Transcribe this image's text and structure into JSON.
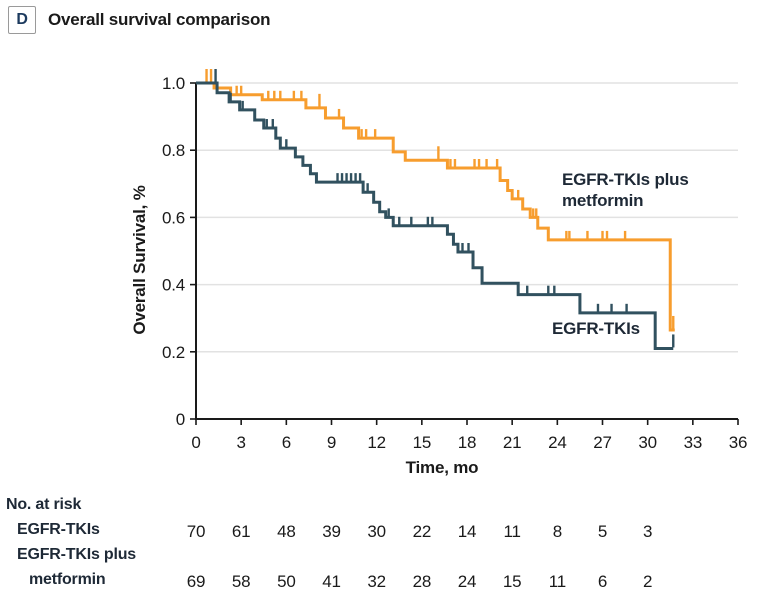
{
  "panel": {
    "letter": "D",
    "title": "Overall survival comparison"
  },
  "chart_data": {
    "type": "line",
    "subtype": "kaplan-meier-step",
    "title": "Overall survival comparison",
    "xlabel": "Time, mo",
    "ylabel": "Overall Survival, %",
    "xlim": [
      0,
      36
    ],
    "ylim": [
      0,
      1.0
    ],
    "grid": "horizontal",
    "x_ticks": [
      0,
      3,
      6,
      9,
      12,
      15,
      18,
      21,
      24,
      27,
      30,
      33,
      36
    ],
    "y_ticks": [
      {
        "v": 1.0,
        "label": "1.0"
      },
      {
        "v": 0.8,
        "label": "0.8"
      },
      {
        "v": 0.6,
        "label": "0.6"
      },
      {
        "v": 0.4,
        "label": "0.4"
      },
      {
        "v": 0.2,
        "label": "0.2"
      },
      {
        "v": 0.0,
        "label": "0"
      }
    ],
    "series": [
      {
        "name": "EGFR-TKIs plus metformin",
        "label_lines": [
          "EGFR-TKIs plus",
          "metformin"
        ],
        "color": "#F79D2E",
        "start": [
          0,
          1.0
        ],
        "end_month": 31.8,
        "steps": [
          [
            1.2,
            0.985
          ],
          [
            2.3,
            0.965
          ],
          [
            4.4,
            0.95
          ],
          [
            7.3,
            0.926
          ],
          [
            8.6,
            0.896
          ],
          [
            9.8,
            0.866
          ],
          [
            10.8,
            0.836
          ],
          [
            13.1,
            0.795
          ],
          [
            13.9,
            0.77
          ],
          [
            16.7,
            0.747
          ],
          [
            20.2,
            0.71
          ],
          [
            20.7,
            0.68
          ],
          [
            21.0,
            0.655
          ],
          [
            21.7,
            0.625
          ],
          [
            22.2,
            0.6
          ],
          [
            22.7,
            0.568
          ],
          [
            23.4,
            0.533
          ],
          [
            31.5,
            0.265
          ]
        ],
        "censors": [
          [
            0.7,
            1.0,
            1
          ],
          [
            1.0,
            1.0,
            1
          ],
          [
            2.7,
            0.965
          ],
          [
            3.0,
            0.965
          ],
          [
            4.8,
            0.95
          ],
          [
            5.2,
            0.95
          ],
          [
            5.6,
            0.95
          ],
          [
            6.5,
            0.95
          ],
          [
            7.0,
            0.95
          ],
          [
            8.2,
            0.926,
            1
          ],
          [
            9.5,
            0.896
          ],
          [
            11.0,
            0.836
          ],
          [
            11.3,
            0.836
          ],
          [
            11.9,
            0.836
          ],
          [
            16.1,
            0.77,
            1
          ],
          [
            16.9,
            0.747
          ],
          [
            17.2,
            0.747
          ],
          [
            18.5,
            0.747
          ],
          [
            18.8,
            0.747
          ],
          [
            19.3,
            0.747
          ],
          [
            20.0,
            0.747
          ],
          [
            21.4,
            0.655
          ],
          [
            22.4,
            0.6
          ],
          [
            22.6,
            0.6
          ],
          [
            24.6,
            0.533
          ],
          [
            24.8,
            0.533
          ],
          [
            26.0,
            0.533
          ],
          [
            27.0,
            0.533
          ],
          [
            27.3,
            0.533
          ],
          [
            28.5,
            0.533
          ],
          [
            31.7,
            0.265,
            1
          ]
        ]
      },
      {
        "name": "EGFR-TKIs",
        "label_lines": [
          "EGFR-TKIs"
        ],
        "color": "#31515F",
        "start": [
          0,
          1.0
        ],
        "end_month": 31.7,
        "steps": [
          [
            1.4,
            0.971
          ],
          [
            2.2,
            0.944
          ],
          [
            2.9,
            0.92
          ],
          [
            3.9,
            0.89
          ],
          [
            4.5,
            0.866
          ],
          [
            5.3,
            0.836
          ],
          [
            5.6,
            0.806
          ],
          [
            6.6,
            0.78
          ],
          [
            7.1,
            0.755
          ],
          [
            7.6,
            0.73
          ],
          [
            8.0,
            0.705
          ],
          [
            11.1,
            0.675
          ],
          [
            11.8,
            0.645
          ],
          [
            12.2,
            0.617
          ],
          [
            12.6,
            0.6
          ],
          [
            13.1,
            0.575
          ],
          [
            16.7,
            0.55
          ],
          [
            17.1,
            0.52
          ],
          [
            17.4,
            0.497
          ],
          [
            18.4,
            0.45
          ],
          [
            19.0,
            0.404
          ],
          [
            21.4,
            0.37
          ],
          [
            25.5,
            0.316
          ],
          [
            30.5,
            0.21
          ]
        ],
        "censors": [
          [
            1.3,
            1.0,
            1
          ],
          [
            2.3,
            0.944
          ],
          [
            3.1,
            0.92
          ],
          [
            4.7,
            0.866
          ],
          [
            5.1,
            0.866
          ],
          [
            6.0,
            0.806
          ],
          [
            9.4,
            0.705
          ],
          [
            9.7,
            0.705
          ],
          [
            10.0,
            0.705
          ],
          [
            10.3,
            0.705
          ],
          [
            10.6,
            0.705
          ],
          [
            10.9,
            0.705
          ],
          [
            11.4,
            0.675
          ],
          [
            12.8,
            0.6
          ],
          [
            13.5,
            0.575
          ],
          [
            14.3,
            0.575
          ],
          [
            15.4,
            0.575
          ],
          [
            15.7,
            0.575
          ],
          [
            17.7,
            0.497
          ],
          [
            18.1,
            0.497
          ],
          [
            22.0,
            0.37
          ],
          [
            23.4,
            0.37
          ],
          [
            23.8,
            0.37
          ],
          [
            26.7,
            0.316
          ],
          [
            27.6,
            0.316
          ],
          [
            28.6,
            0.316
          ],
          [
            31.7,
            0.21,
            1
          ]
        ]
      }
    ]
  },
  "risk_table": {
    "heading": "No. at risk",
    "months": [
      0,
      3,
      6,
      9,
      12,
      15,
      18,
      21,
      24,
      27,
      30
    ],
    "rows": [
      {
        "label_lines": [
          "EGFR-TKIs"
        ],
        "values": [
          70,
          61,
          48,
          39,
          30,
          22,
          14,
          11,
          8,
          5,
          3
        ]
      },
      {
        "label_lines": [
          "EGFR-TKIs plus",
          "metformin"
        ],
        "values": [
          69,
          58,
          50,
          41,
          32,
          28,
          24,
          15,
          11,
          6,
          2
        ]
      }
    ]
  },
  "colors": {
    "metformin_curve": "#F79D2E",
    "tki_curve": "#31515F",
    "axis": "#1a1a1a",
    "gridline": "#e2e2e2",
    "panel_letter": "#1c3a5e"
  }
}
